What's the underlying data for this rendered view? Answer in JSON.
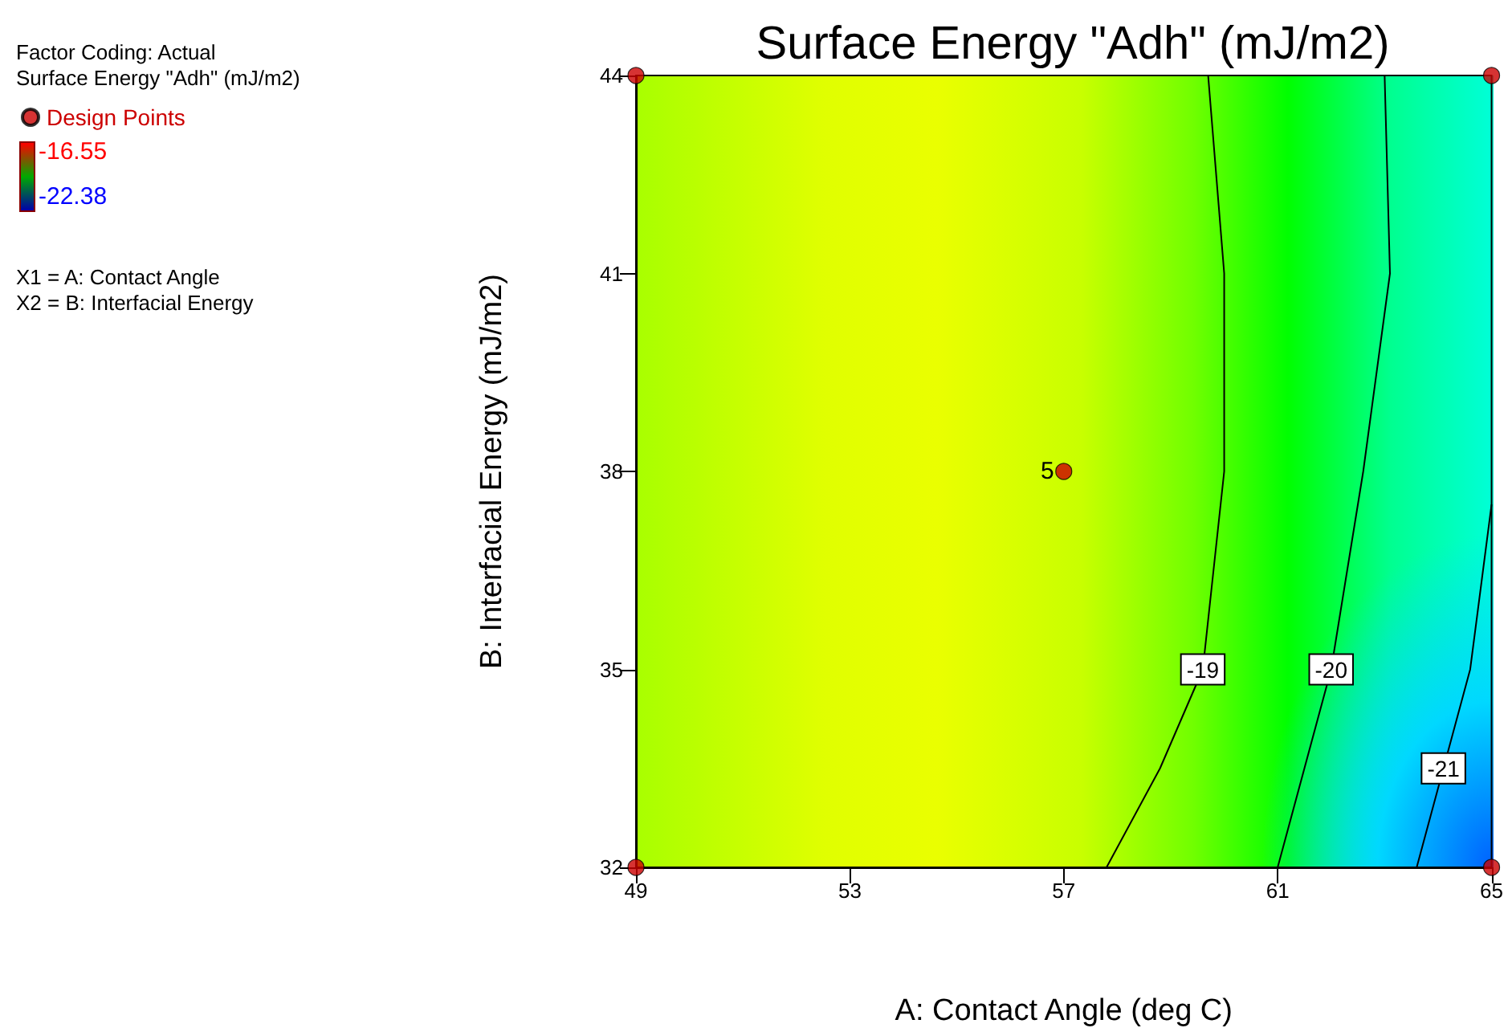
{
  "chart_data": {
    "type": "scatter",
    "title": "Surface Energy \"Adh\" (mJ/m2)",
    "xlabel": "A: Contact Angle (deg C)",
    "ylabel": "B: Interfacial Energy (mJ/m2)",
    "xlim": [
      49,
      65
    ],
    "xticks": [
      49,
      53,
      57,
      61,
      65
    ],
    "ylim": [
      32,
      44
    ],
    "yticks": [
      32,
      35,
      38,
      41,
      44
    ],
    "grid": false,
    "legend": "top left",
    "series": [
      {
        "name": "Design Points",
        "color": "#cc0000",
        "x": [
          49,
          65,
          57,
          49,
          65
        ],
        "values": [
          44,
          44,
          38,
          32,
          32
        ]
      },
      {
        "name": "-19",
        "type": "line",
        "color": "#000000",
        "x": [
          59.7,
          60.0,
          60.0,
          59.6,
          58.8,
          57.8
        ],
        "values": [
          44,
          41,
          38,
          35,
          33.5,
          32
        ]
      },
      {
        "name": "-20",
        "type": "line",
        "color": "#000000",
        "x": [
          63.0,
          63.1,
          62.6,
          62.0,
          61.5,
          61.0
        ],
        "values": [
          44,
          41,
          38,
          35,
          33.5,
          32
        ]
      },
      {
        "name": "-21",
        "type": "line",
        "color": "#000000",
        "x": [
          65.0,
          64.6,
          64.1,
          63.6
        ],
        "values": [
          37.5,
          35,
          33.5,
          32
        ]
      }
    ],
    "annotations": [
      "Factor Coding: Actual",
      "Surface Energy \"Adh\" (mJ/m2)",
      "-16.55",
      "-22.38",
      "X1 = A: Contact Angle",
      "X2 = B: Interfacial Energy",
      {
        "text": "5",
        "x": 57,
        "y": 38
      }
    ]
  }
}
